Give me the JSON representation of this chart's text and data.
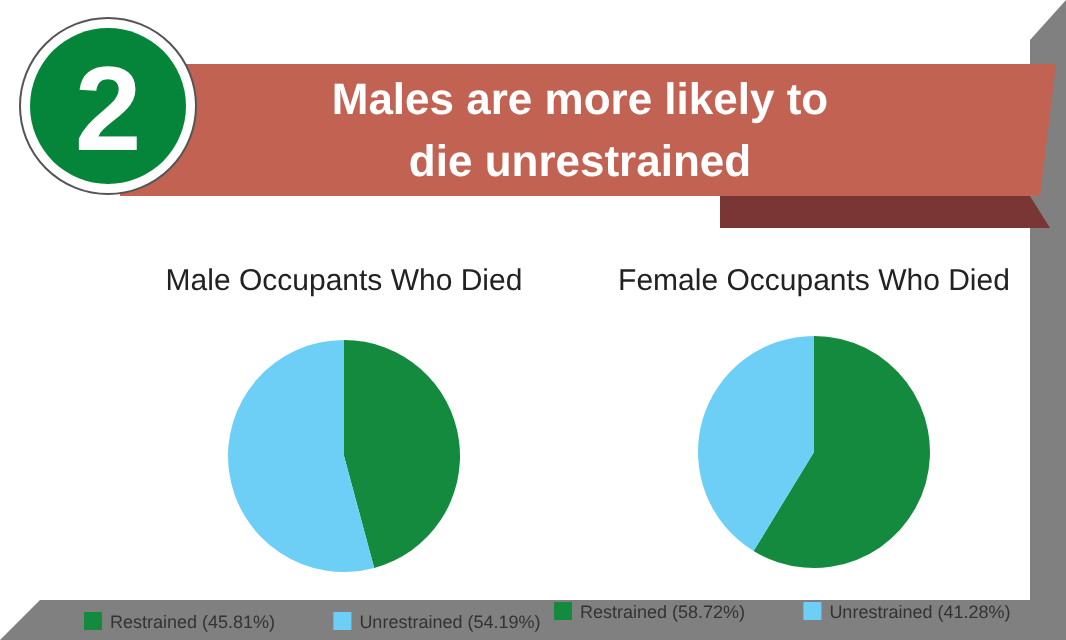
{
  "chart_data": [
    {
      "type": "other",
      "title": "Males are more likely to die unrestrained",
      "annotations": [
        "2"
      ]
    },
    {
      "type": "pie",
      "title": "Male Occupants Who Died",
      "categories": [
        "Restrained (45.81%)",
        "Unrestrained (54.19%)"
      ],
      "values": [
        45.81,
        54.19
      ],
      "colors": [
        "#148a3e",
        "#6dcff6"
      ],
      "legend": "bottom"
    },
    {
      "type": "pie",
      "title": "Female Occupants Who Died",
      "categories": [
        "Restrained (58.72%)",
        "Unrestrained (41.28%)"
      ],
      "values": [
        58.72,
        41.28
      ],
      "colors": [
        "#148a3e",
        "#6dcff6"
      ],
      "legend": "bottom"
    }
  ]
}
